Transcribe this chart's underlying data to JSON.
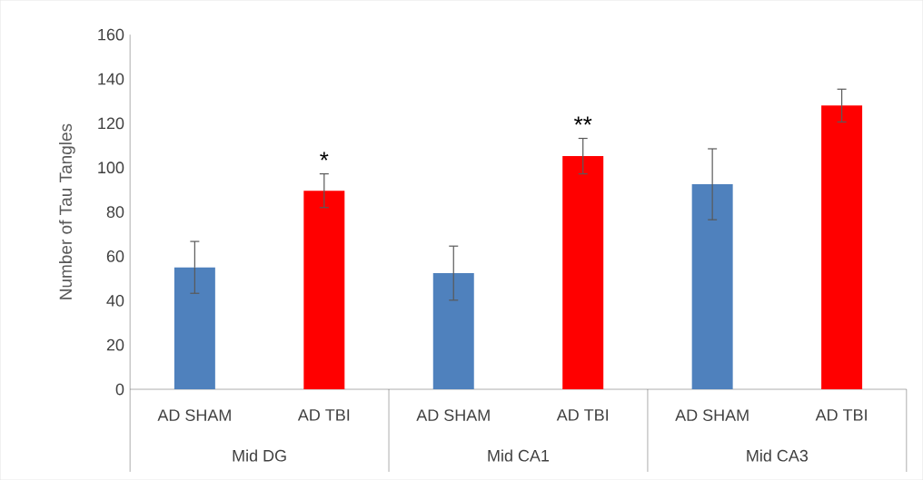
{
  "chart_data": {
    "type": "bar",
    "ylabel": "Number of Tau Tangles",
    "categories": [
      "AD SHAM",
      "AD TBI",
      "AD SHAM",
      "AD TBI",
      "AD SHAM",
      "AD TBI"
    ],
    "values": [
      55,
      89.6,
      52.4,
      105.2,
      92.5,
      128
    ],
    "colors": [
      "#4f81bd",
      "#ff0000",
      "#4f81bd",
      "#ff0000",
      "#4f81bd",
      "#ff0000"
    ],
    "errors": [
      11.7,
      7.6,
      12.2,
      8,
      16,
      7.4
    ],
    "value_labels": [
      null,
      "*",
      null,
      "**",
      null,
      null
    ],
    "annotations": [
      "Mid DG",
      "Mid CA1",
      "Mid CA3"
    ],
    "ylim": [
      0,
      160
    ],
    "yticks": [
      0,
      20,
      40,
      60,
      80,
      100,
      120,
      140,
      160
    ],
    "grid": false
  }
}
